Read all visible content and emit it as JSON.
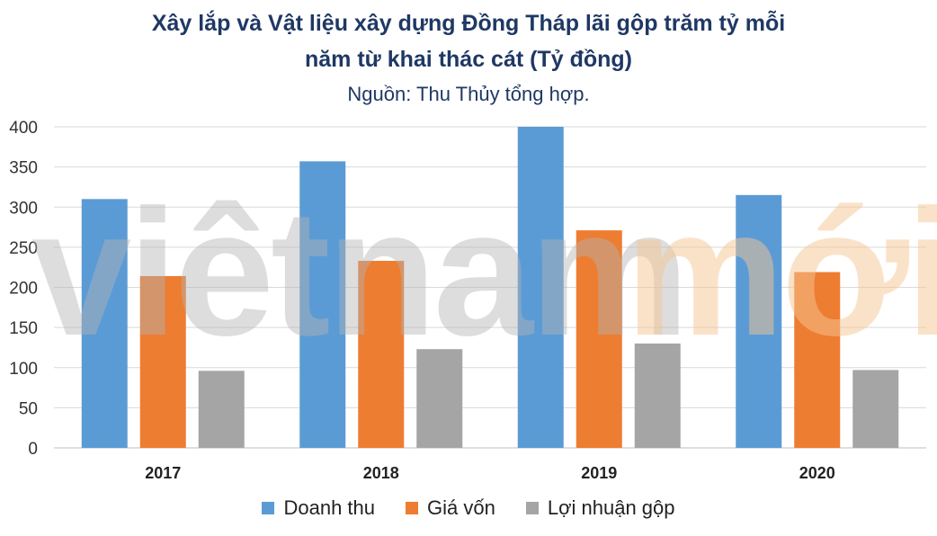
{
  "chart_data": {
    "type": "bar",
    "title_line1": "Xây lắp và Vật liệu xây dựng Đồng Tháp lãi gộp trăm tỷ mỗi",
    "title_line2": "năm từ khai thác cát (Tỷ đồng)",
    "subtitle": "Nguồn: Thu Thủy tổng hợp.",
    "categories": [
      "2017",
      "2018",
      "2019",
      "2020"
    ],
    "series": [
      {
        "name": "Doanh thu",
        "values": [
          310,
          357,
          400,
          315
        ],
        "color": "#5b9bd5"
      },
      {
        "name": "Giá vốn",
        "values": [
          214,
          233,
          271,
          219
        ],
        "color": "#ed7d31"
      },
      {
        "name": "Lợi nhuận gộp",
        "values": [
          96,
          123,
          130,
          97
        ],
        "color": "#a5a5a5"
      }
    ],
    "yticks": [
      "0",
      "50",
      "100",
      "150",
      "200",
      "250",
      "300",
      "350",
      "400"
    ],
    "ylim": [
      0,
      400
    ],
    "grid": true,
    "legend_position": "bottom",
    "watermark": "vietnammới"
  }
}
